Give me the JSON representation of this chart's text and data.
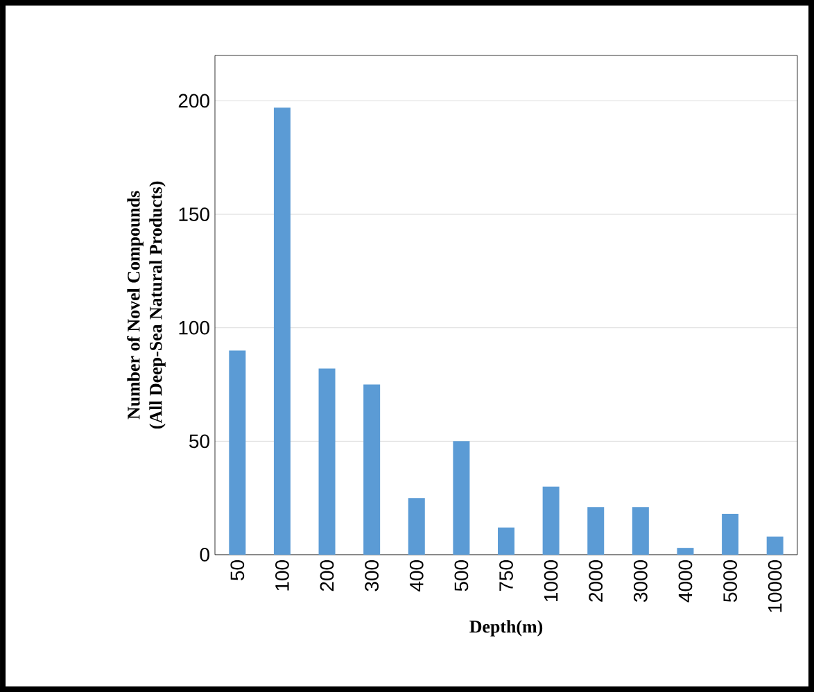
{
  "chart_data": {
    "type": "bar",
    "xlabel": "Depth(m)",
    "ylabel": "Number of Novel Compounds\n(All Deep-Sea Natural Products)",
    "categories": [
      "50",
      "100",
      "200",
      "300",
      "400",
      "500",
      "750",
      "1000",
      "2000",
      "3000",
      "4000",
      "5000",
      "10000"
    ],
    "values": [
      90,
      197,
      82,
      75,
      25,
      50,
      12,
      30,
      21,
      21,
      3,
      18,
      8
    ],
    "color": "#5b9bd5",
    "ylim": [
      0,
      220
    ],
    "yticks": [
      0,
      50,
      100,
      150,
      200
    ],
    "grid": "y"
  }
}
